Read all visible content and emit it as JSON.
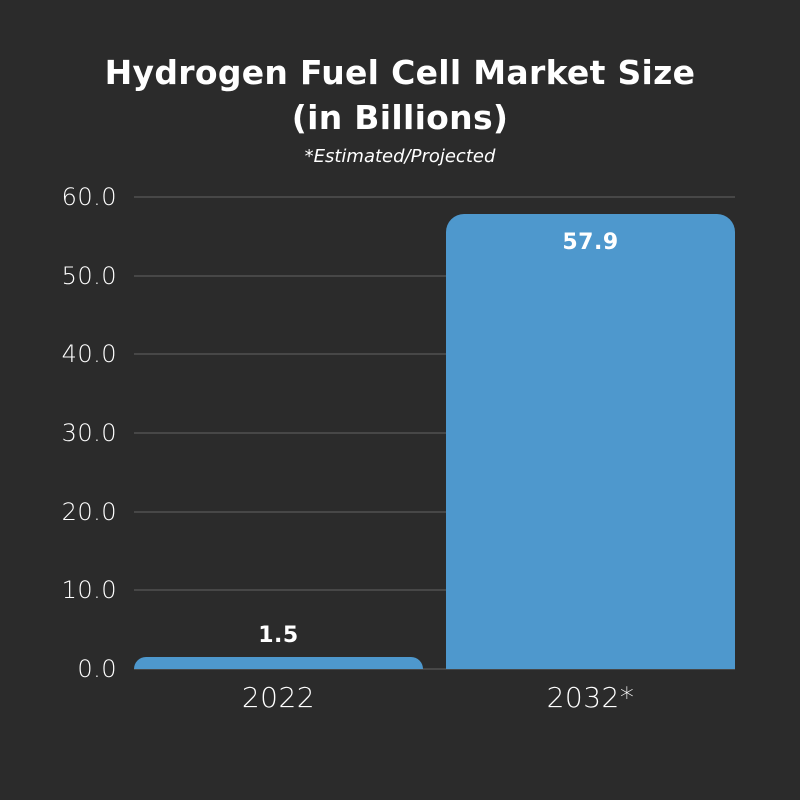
{
  "canvas": {
    "background": "#2b2b2b",
    "text_color": "#ffffff"
  },
  "header": {
    "title_line1": "Hydrogen Fuel Cell Market Size",
    "title_line2": "(in Billions)",
    "subtitle": "*Estimated/Projected"
  },
  "chart_data": {
    "type": "bar",
    "title": "Hydrogen Fuel Cell Market Size (in Billions)",
    "subtitle": "*Estimated/Projected",
    "categories": [
      "2022",
      "2032*"
    ],
    "values": [
      1.5,
      57.9
    ],
    "value_labels": [
      "1.5",
      "57.9"
    ],
    "bar_color": "#4e98cd",
    "value_label_color": "#ffffff",
    "axis_label_color": "#ffffff",
    "gridline_color": "#474747",
    "ylim": [
      0,
      60
    ],
    "yticks": [
      0,
      10,
      20,
      30,
      40,
      50,
      60
    ],
    "ytick_labels": [
      "0.0",
      "10.0",
      "20.0",
      "30.0",
      "40.0",
      "50.0",
      "60.0"
    ],
    "grid": true,
    "legend": false,
    "xlabel": "",
    "ylabel": ""
  }
}
